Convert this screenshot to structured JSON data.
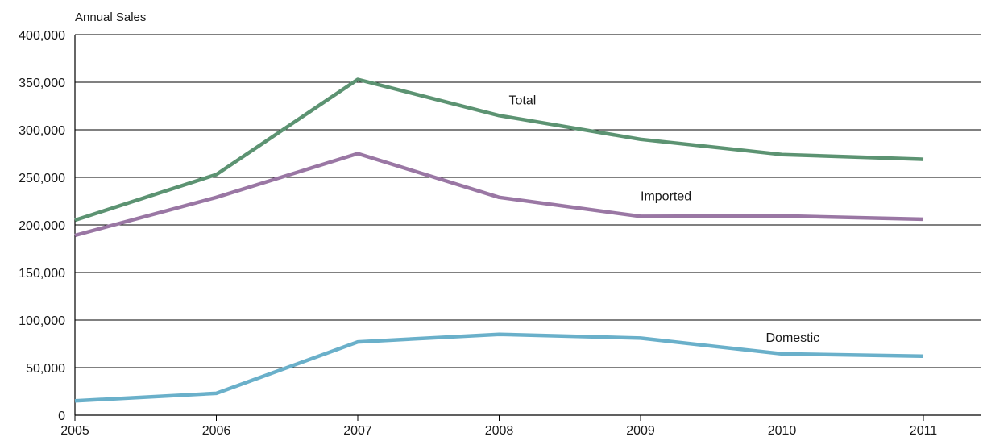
{
  "chart_data": {
    "type": "line",
    "title": "",
    "xlabel": "",
    "ylabel": "Annual Sales",
    "x": [
      "2005",
      "2006",
      "2007",
      "2008",
      "2009",
      "2010",
      "2011"
    ],
    "ylim": [
      0,
      400000
    ],
    "yticks": [
      0,
      50000,
      100000,
      150000,
      200000,
      250000,
      300000,
      350000,
      400000
    ],
    "ytick_labels": [
      "0",
      "50,000",
      "100,000",
      "150,000",
      "200,000",
      "250,000",
      "300,000",
      "350,000",
      "400,000"
    ],
    "grid": true,
    "legend": "none",
    "series": [
      {
        "name": "Total",
        "color": "#5c9372",
        "values": [
          205000,
          253000,
          353000,
          315000,
          290000,
          274000,
          269000
        ]
      },
      {
        "name": "Imported",
        "color": "#9a77a4",
        "values": [
          189000,
          229000,
          275000,
          229000,
          209000,
          209500,
          206000
        ]
      },
      {
        "name": "Domestic",
        "color": "#6ab0ca",
        "values": [
          15000,
          23000,
          77000,
          85000,
          81000,
          64500,
          62000
        ]
      }
    ]
  }
}
